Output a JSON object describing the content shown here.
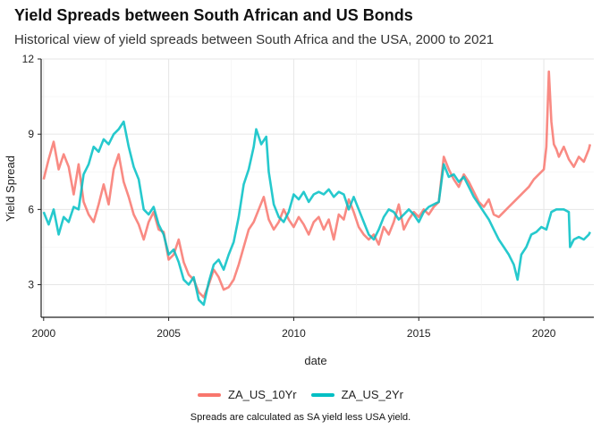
{
  "chart_data": {
    "type": "line",
    "title": "Yield Spreads between South African and US Bonds",
    "subtitle": "Historical view of yield spreads between South Africa and the USA, 2000 to 2021",
    "xlabel": "date",
    "ylabel": "Yield Spread",
    "caption": "Spreads are calculated as SA yield less USA yield.",
    "xlim": [
      1999.9,
      2022.0
    ],
    "ylim": [
      1.7,
      12.0
    ],
    "xticks": [
      2000,
      2005,
      2010,
      2015,
      2020
    ],
    "xtick_labels": [
      "2000",
      "2005",
      "2010",
      "2015",
      "2020"
    ],
    "yticks": [
      3,
      6,
      9,
      12
    ],
    "ytick_labels": [
      "3",
      "6",
      "9",
      "12"
    ],
    "grid": true,
    "legend_position": "bottom",
    "series": [
      {
        "name": "ZA_US_10Yr",
        "color": "#F8766D",
        "points": [
          [
            2000.0,
            7.2
          ],
          [
            2000.2,
            8.0
          ],
          [
            2000.4,
            8.7
          ],
          [
            2000.6,
            7.6
          ],
          [
            2000.8,
            8.2
          ],
          [
            2001.0,
            7.7
          ],
          [
            2001.2,
            6.6
          ],
          [
            2001.4,
            7.8
          ],
          [
            2001.6,
            6.3
          ],
          [
            2001.8,
            5.8
          ],
          [
            2002.0,
            5.5
          ],
          [
            2002.2,
            6.2
          ],
          [
            2002.4,
            7.0
          ],
          [
            2002.6,
            6.2
          ],
          [
            2002.8,
            7.6
          ],
          [
            2003.0,
            8.2
          ],
          [
            2003.2,
            7.1
          ],
          [
            2003.4,
            6.5
          ],
          [
            2003.6,
            5.8
          ],
          [
            2003.8,
            5.4
          ],
          [
            2004.0,
            4.8
          ],
          [
            2004.2,
            5.5
          ],
          [
            2004.4,
            5.9
          ],
          [
            2004.6,
            5.2
          ],
          [
            2004.8,
            5.1
          ],
          [
            2005.0,
            4.0
          ],
          [
            2005.2,
            4.2
          ],
          [
            2005.4,
            4.8
          ],
          [
            2005.6,
            3.9
          ],
          [
            2005.8,
            3.4
          ],
          [
            2006.0,
            3.2
          ],
          [
            2006.2,
            2.7
          ],
          [
            2006.4,
            2.5
          ],
          [
            2006.6,
            3.0
          ],
          [
            2006.8,
            3.6
          ],
          [
            2007.0,
            3.3
          ],
          [
            2007.2,
            2.8
          ],
          [
            2007.4,
            2.9
          ],
          [
            2007.6,
            3.2
          ],
          [
            2007.8,
            3.8
          ],
          [
            2008.0,
            4.5
          ],
          [
            2008.2,
            5.2
          ],
          [
            2008.4,
            5.5
          ],
          [
            2008.6,
            6.0
          ],
          [
            2008.8,
            6.5
          ],
          [
            2009.0,
            5.6
          ],
          [
            2009.2,
            5.2
          ],
          [
            2009.4,
            5.5
          ],
          [
            2009.6,
            6.0
          ],
          [
            2009.8,
            5.6
          ],
          [
            2010.0,
            5.3
          ],
          [
            2010.2,
            5.7
          ],
          [
            2010.4,
            5.4
          ],
          [
            2010.6,
            5.0
          ],
          [
            2010.8,
            5.5
          ],
          [
            2011.0,
            5.7
          ],
          [
            2011.2,
            5.2
          ],
          [
            2011.4,
            5.6
          ],
          [
            2011.6,
            4.8
          ],
          [
            2011.8,
            5.8
          ],
          [
            2012.0,
            5.6
          ],
          [
            2012.2,
            6.4
          ],
          [
            2012.4,
            5.9
          ],
          [
            2012.6,
            5.3
          ],
          [
            2012.8,
            5.0
          ],
          [
            2013.0,
            4.8
          ],
          [
            2013.2,
            5.0
          ],
          [
            2013.4,
            4.6
          ],
          [
            2013.6,
            5.3
          ],
          [
            2013.8,
            5.0
          ],
          [
            2014.0,
            5.5
          ],
          [
            2014.2,
            6.2
          ],
          [
            2014.4,
            5.2
          ],
          [
            2014.6,
            5.6
          ],
          [
            2014.8,
            5.9
          ],
          [
            2015.0,
            5.7
          ],
          [
            2015.2,
            6.0
          ],
          [
            2015.4,
            5.8
          ],
          [
            2015.6,
            6.1
          ],
          [
            2015.8,
            6.3
          ],
          [
            2016.0,
            8.1
          ],
          [
            2016.2,
            7.6
          ],
          [
            2016.4,
            7.2
          ],
          [
            2016.6,
            6.9
          ],
          [
            2016.8,
            7.4
          ],
          [
            2017.0,
            7.1
          ],
          [
            2017.2,
            6.7
          ],
          [
            2017.4,
            6.3
          ],
          [
            2017.6,
            6.1
          ],
          [
            2017.8,
            6.4
          ],
          [
            2018.0,
            5.8
          ],
          [
            2018.2,
            5.7
          ],
          [
            2018.4,
            5.9
          ],
          [
            2018.6,
            6.1
          ],
          [
            2018.8,
            6.3
          ],
          [
            2019.0,
            6.5
          ],
          [
            2019.2,
            6.7
          ],
          [
            2019.4,
            6.9
          ],
          [
            2019.6,
            7.2
          ],
          [
            2019.8,
            7.4
          ],
          [
            2020.0,
            7.6
          ],
          [
            2020.1,
            8.5
          ],
          [
            2020.2,
            11.5
          ],
          [
            2020.3,
            9.5
          ],
          [
            2020.4,
            8.6
          ],
          [
            2020.5,
            8.4
          ],
          [
            2020.6,
            8.1
          ],
          [
            2020.8,
            8.5
          ],
          [
            2021.0,
            8.0
          ],
          [
            2021.2,
            7.7
          ],
          [
            2021.4,
            8.1
          ],
          [
            2021.6,
            7.9
          ],
          [
            2021.8,
            8.4
          ],
          [
            2021.85,
            8.6
          ]
        ]
      },
      {
        "name": "ZA_US_2Yr",
        "color": "#00BFC4",
        "points": [
          [
            2000.0,
            5.9
          ],
          [
            2000.2,
            5.4
          ],
          [
            2000.4,
            6.0
          ],
          [
            2000.6,
            5.0
          ],
          [
            2000.8,
            5.7
          ],
          [
            2001.0,
            5.5
          ],
          [
            2001.2,
            6.1
          ],
          [
            2001.4,
            6.0
          ],
          [
            2001.6,
            7.4
          ],
          [
            2001.8,
            7.8
          ],
          [
            2002.0,
            8.5
          ],
          [
            2002.2,
            8.3
          ],
          [
            2002.4,
            8.8
          ],
          [
            2002.6,
            8.6
          ],
          [
            2002.8,
            9.0
          ],
          [
            2003.0,
            9.2
          ],
          [
            2003.2,
            9.5
          ],
          [
            2003.4,
            8.5
          ],
          [
            2003.6,
            7.7
          ],
          [
            2003.8,
            7.2
          ],
          [
            2004.0,
            6.0
          ],
          [
            2004.2,
            5.8
          ],
          [
            2004.4,
            6.1
          ],
          [
            2004.6,
            5.4
          ],
          [
            2004.8,
            5.0
          ],
          [
            2005.0,
            4.2
          ],
          [
            2005.2,
            4.4
          ],
          [
            2005.4,
            3.9
          ],
          [
            2005.6,
            3.2
          ],
          [
            2005.8,
            3.0
          ],
          [
            2006.0,
            3.3
          ],
          [
            2006.2,
            2.4
          ],
          [
            2006.4,
            2.2
          ],
          [
            2006.6,
            3.1
          ],
          [
            2006.8,
            3.8
          ],
          [
            2007.0,
            4.0
          ],
          [
            2007.2,
            3.6
          ],
          [
            2007.4,
            4.2
          ],
          [
            2007.6,
            4.7
          ],
          [
            2007.8,
            5.7
          ],
          [
            2008.0,
            7.0
          ],
          [
            2008.2,
            7.6
          ],
          [
            2008.4,
            8.5
          ],
          [
            2008.5,
            9.2
          ],
          [
            2008.7,
            8.6
          ],
          [
            2008.9,
            8.9
          ],
          [
            2009.0,
            7.5
          ],
          [
            2009.2,
            6.2
          ],
          [
            2009.4,
            5.7
          ],
          [
            2009.6,
            5.5
          ],
          [
            2009.8,
            5.9
          ],
          [
            2010.0,
            6.6
          ],
          [
            2010.2,
            6.4
          ],
          [
            2010.4,
            6.7
          ],
          [
            2010.6,
            6.3
          ],
          [
            2010.8,
            6.6
          ],
          [
            2011.0,
            6.7
          ],
          [
            2011.2,
            6.6
          ],
          [
            2011.4,
            6.8
          ],
          [
            2011.6,
            6.5
          ],
          [
            2011.8,
            6.7
          ],
          [
            2012.0,
            6.6
          ],
          [
            2012.2,
            6.0
          ],
          [
            2012.4,
            6.5
          ],
          [
            2012.6,
            6.0
          ],
          [
            2012.8,
            5.5
          ],
          [
            2013.0,
            5.0
          ],
          [
            2013.2,
            4.8
          ],
          [
            2013.4,
            5.2
          ],
          [
            2013.6,
            5.7
          ],
          [
            2013.8,
            6.0
          ],
          [
            2014.0,
            5.9
          ],
          [
            2014.2,
            5.6
          ],
          [
            2014.4,
            5.8
          ],
          [
            2014.6,
            6.0
          ],
          [
            2014.8,
            5.8
          ],
          [
            2015.0,
            5.5
          ],
          [
            2015.2,
            5.9
          ],
          [
            2015.4,
            6.1
          ],
          [
            2015.6,
            6.2
          ],
          [
            2015.8,
            6.3
          ],
          [
            2016.0,
            7.8
          ],
          [
            2016.2,
            7.3
          ],
          [
            2016.4,
            7.4
          ],
          [
            2016.6,
            7.1
          ],
          [
            2016.8,
            7.3
          ],
          [
            2017.0,
            6.9
          ],
          [
            2017.2,
            6.5
          ],
          [
            2017.4,
            6.2
          ],
          [
            2017.6,
            5.9
          ],
          [
            2017.8,
            5.6
          ],
          [
            2018.0,
            5.2
          ],
          [
            2018.2,
            4.8
          ],
          [
            2018.4,
            4.5
          ],
          [
            2018.6,
            4.2
          ],
          [
            2018.8,
            3.8
          ],
          [
            2018.95,
            3.2
          ],
          [
            2019.1,
            4.2
          ],
          [
            2019.3,
            4.5
          ],
          [
            2019.5,
            5.0
          ],
          [
            2019.7,
            5.1
          ],
          [
            2019.9,
            5.3
          ],
          [
            2020.1,
            5.2
          ],
          [
            2020.3,
            5.9
          ],
          [
            2020.5,
            6.0
          ],
          [
            2020.8,
            6.0
          ],
          [
            2021.0,
            5.9
          ],
          [
            2021.05,
            4.5
          ],
          [
            2021.2,
            4.8
          ],
          [
            2021.4,
            4.9
          ],
          [
            2021.6,
            4.8
          ],
          [
            2021.8,
            5.0
          ],
          [
            2021.85,
            5.1
          ]
        ]
      }
    ]
  }
}
